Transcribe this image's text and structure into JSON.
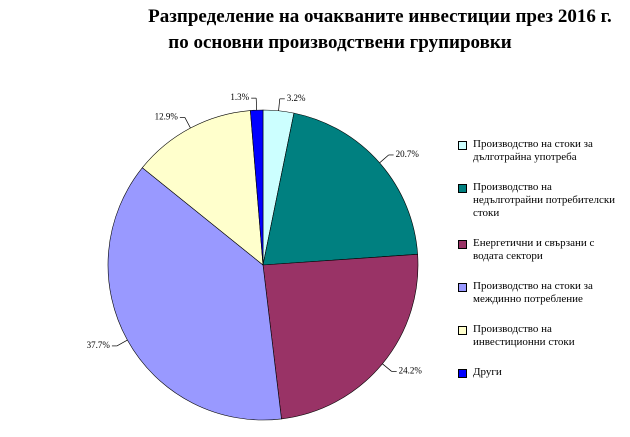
{
  "chart_data": {
    "type": "pie",
    "title": [
      "Разпределение на очакваните инвестиции през 2016 г.",
      "по основни производствени групировки"
    ],
    "series": [
      {
        "name": "Производство на стоки за дълготрайна употреба",
        "color": "#ccffff",
        "values": [
          3.2
        ],
        "value_labels": [
          "3.2%"
        ]
      },
      {
        "name": "Производство на недълготрайни потребителски стоки",
        "color": "#008080",
        "values": [
          20.7
        ],
        "value_labels": [
          "20.7%"
        ]
      },
      {
        "name": "Енергетични и свързани с водата сектори",
        "color": "#993366",
        "values": [
          24.2
        ],
        "value_labels": [
          "24.2%"
        ]
      },
      {
        "name": "Производство на стоки за междинно потребление",
        "color": "#9999ff",
        "values": [
          37.7
        ],
        "value_labels": [
          "37.7%"
        ]
      },
      {
        "name": "Производство на инвестиционни стоки",
        "color": "#ffffcc",
        "values": [
          12.9
        ],
        "value_labels": [
          "12.9%"
        ]
      },
      {
        "name": "Други",
        "color": "#0000ff",
        "values": [
          1.3
        ],
        "value_labels": [
          "1.3%"
        ]
      }
    ]
  }
}
